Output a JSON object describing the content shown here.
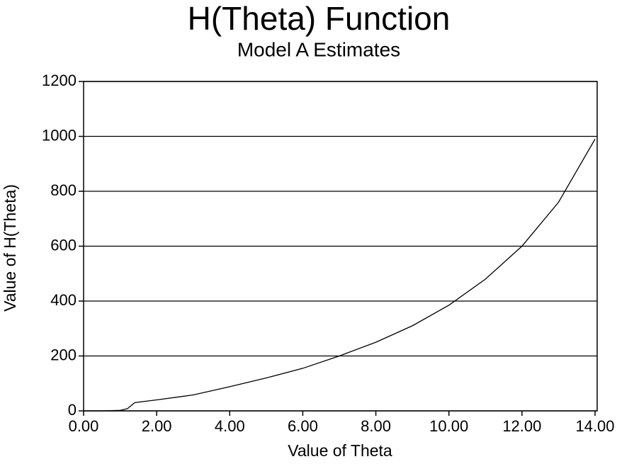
{
  "chart_data": {
    "type": "line",
    "title": "H(Theta) Function",
    "subtitle": "Model A Estimates",
    "xlabel": "Value of Theta",
    "ylabel": "Value of H(Theta)",
    "x": [
      0,
      0.5,
      1.0,
      1.2,
      1.4,
      2,
      3,
      4,
      5,
      6,
      7,
      8,
      9,
      10,
      11,
      12,
      13,
      14
    ],
    "values": [
      0,
      0,
      2,
      8,
      30,
      40,
      58,
      88,
      120,
      155,
      200,
      250,
      310,
      385,
      480,
      600,
      760,
      990
    ],
    "color": "#000000",
    "xlim": [
      0,
      14
    ],
    "xticks": [
      {
        "value": 0,
        "label": "0.00"
      },
      {
        "value": 2,
        "label": "2.00"
      },
      {
        "value": 4,
        "label": "4.00"
      },
      {
        "value": 6,
        "label": "6.00"
      },
      {
        "value": 8,
        "label": "8.00"
      },
      {
        "value": 10,
        "label": "10.00"
      },
      {
        "value": 12,
        "label": "12.00"
      },
      {
        "value": 14,
        "label": "14.00"
      }
    ],
    "ylim": [
      0,
      1200
    ],
    "yticks": [
      0,
      200,
      400,
      600,
      800,
      1000,
      1200
    ],
    "grid": true
  }
}
